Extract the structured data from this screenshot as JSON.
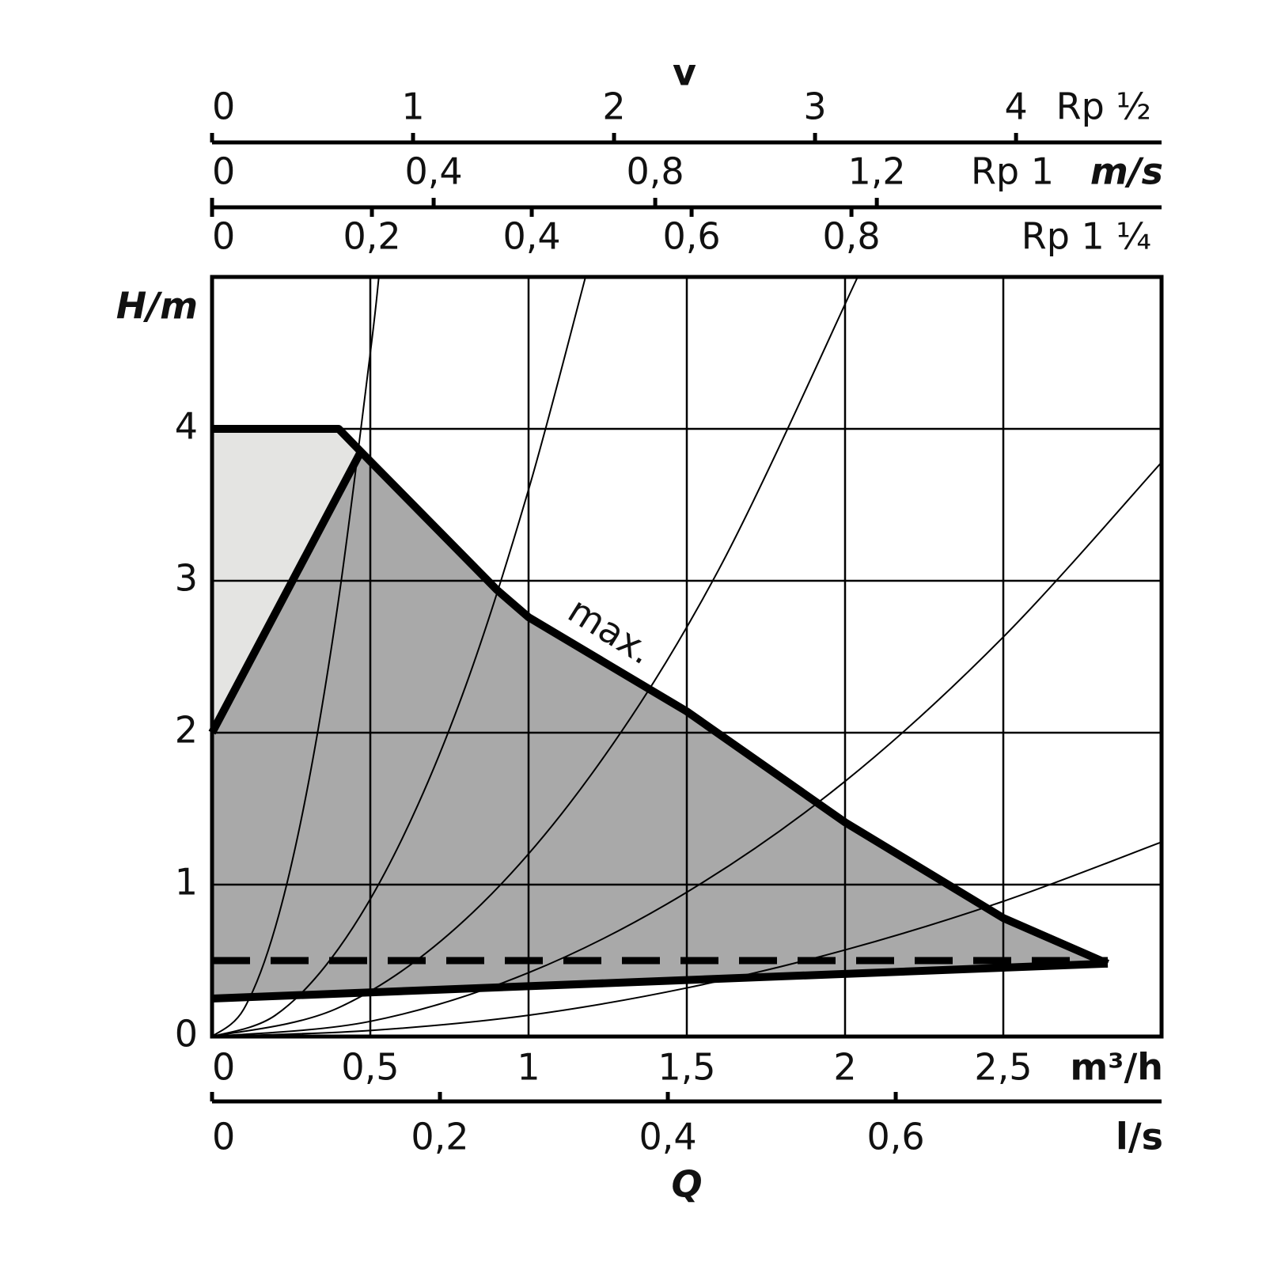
{
  "chart_data": {
    "type": "line",
    "x_label": "m³/h",
    "y_label": "H/m",
    "q_label": "Q",
    "xlim": [
      0,
      3
    ],
    "xticks": [
      0,
      {
        "value": 0.5,
        "label": "0,5"
      },
      1,
      {
        "value": 1.5,
        "label": "1,5"
      },
      2,
      {
        "value": 2.5,
        "label": "2,5"
      }
    ],
    "ylim": [
      0,
      5
    ],
    "yticks": [
      0,
      1,
      2,
      3,
      4
    ],
    "grid": true,
    "x2": {
      "label": "l/s",
      "lim": [
        0,
        0.8333
      ],
      "ticks": [
        0,
        {
          "value": 0.2,
          "label": "0,2"
        },
        {
          "value": 0.4,
          "label": "0,4"
        },
        {
          "value": 0.6,
          "label": "0,6"
        }
      ]
    },
    "top_axes": {
      "title": "v",
      "unit": "m/s",
      "axes": [
        {
          "name": "Rp ½",
          "lim": [
            0,
            4.724
          ],
          "ticks": [
            0,
            1,
            2,
            3,
            4
          ]
        },
        {
          "name": "Rp 1",
          "lim": [
            0,
            1.714
          ],
          "ticks": [
            0,
            {
              "value": 0.4,
              "label": "0,4"
            },
            {
              "value": 0.8,
              "label": "0,8"
            },
            {
              "value": 1.2,
              "label": "1,2"
            }
          ]
        },
        {
          "name": "Rp 1 ¼",
          "lim": [
            0,
            1.188
          ],
          "ticks": [
            0,
            {
              "value": 0.2,
              "label": "0,2"
            },
            {
              "value": 0.4,
              "label": "0,4"
            },
            {
              "value": 0.6,
              "label": "0,6"
            },
            {
              "value": 0.8,
              "label": "0,8"
            }
          ]
        }
      ]
    },
    "series": [
      {
        "name": "max.",
        "color": "#000000",
        "x": [
          0,
          0.4,
          0.47,
          0.9,
          1.0,
          1.5,
          2.0,
          2.5,
          2.83
        ],
        "values": [
          4,
          4,
          3.85,
          2.94,
          2.76,
          2.14,
          1.41,
          0.78,
          0.48
        ]
      },
      {
        "color": "#000000",
        "x": [
          0,
          0.47
        ],
        "values": [
          2,
          3.85
        ]
      },
      {
        "color": "#000000",
        "x": [
          0,
          2.83
        ],
        "values": [
          0.25,
          0.48
        ]
      },
      {
        "color": "#000000",
        "dashed": true,
        "x": [
          0,
          2.83
        ],
        "values": [
          0.5,
          0.5
        ]
      }
    ],
    "system_curves": [
      {
        "x": [
          0,
          0.1,
          0.2,
          0.3,
          0.4,
          0.5,
          0.527
        ],
        "values": [
          0,
          0.18,
          0.72,
          1.62,
          2.88,
          4.5,
          5.0
        ]
      },
      {
        "x": [
          0,
          0.2,
          0.4,
          0.6,
          0.8,
          1.0,
          1.18
        ],
        "values": [
          0,
          0.14,
          0.58,
          1.3,
          2.3,
          3.6,
          5.0
        ]
      },
      {
        "x": [
          0,
          0.4,
          0.8,
          1.2,
          1.6,
          2.04
        ],
        "values": [
          0,
          0.19,
          0.77,
          1.73,
          3.07,
          5.0
        ]
      },
      {
        "x": [
          0,
          0.5,
          1,
          1.5,
          2,
          2.5,
          3
        ],
        "values": [
          0,
          0.1,
          0.42,
          0.95,
          1.68,
          2.63,
          3.78
        ]
      },
      {
        "x": [
          0,
          0.5,
          1,
          1.5,
          2,
          2.5,
          3
        ],
        "values": [
          0,
          0.04,
          0.14,
          0.32,
          0.57,
          0.89,
          1.28
        ]
      }
    ],
    "region_colors": {
      "light": "#e4e4e2",
      "dark": "#a9a9a9"
    }
  }
}
